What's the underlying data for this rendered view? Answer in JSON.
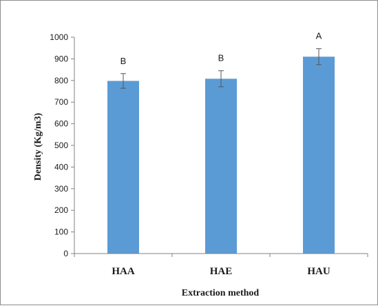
{
  "chart_data": {
    "type": "bar",
    "title": "",
    "xlabel": "Extraction method",
    "ylabel": "Density (Kg/m3)",
    "categories": [
      "HAA",
      "HAE",
      "HAU"
    ],
    "values": [
      798,
      808,
      910
    ],
    "error": [
      34,
      37,
      37
    ],
    "significance_letters": [
      "B",
      "B",
      "A"
    ],
    "ylim": [
      0,
      1000
    ],
    "yticks": [
      "0",
      "100",
      "200",
      "300",
      "400",
      "500",
      "600",
      "700",
      "800",
      "900",
      "1000"
    ],
    "grid": false,
    "legend": "none",
    "bar_color": "#5b9bd5",
    "error_bar_color": "#555555",
    "axis_color": "#808080"
  }
}
